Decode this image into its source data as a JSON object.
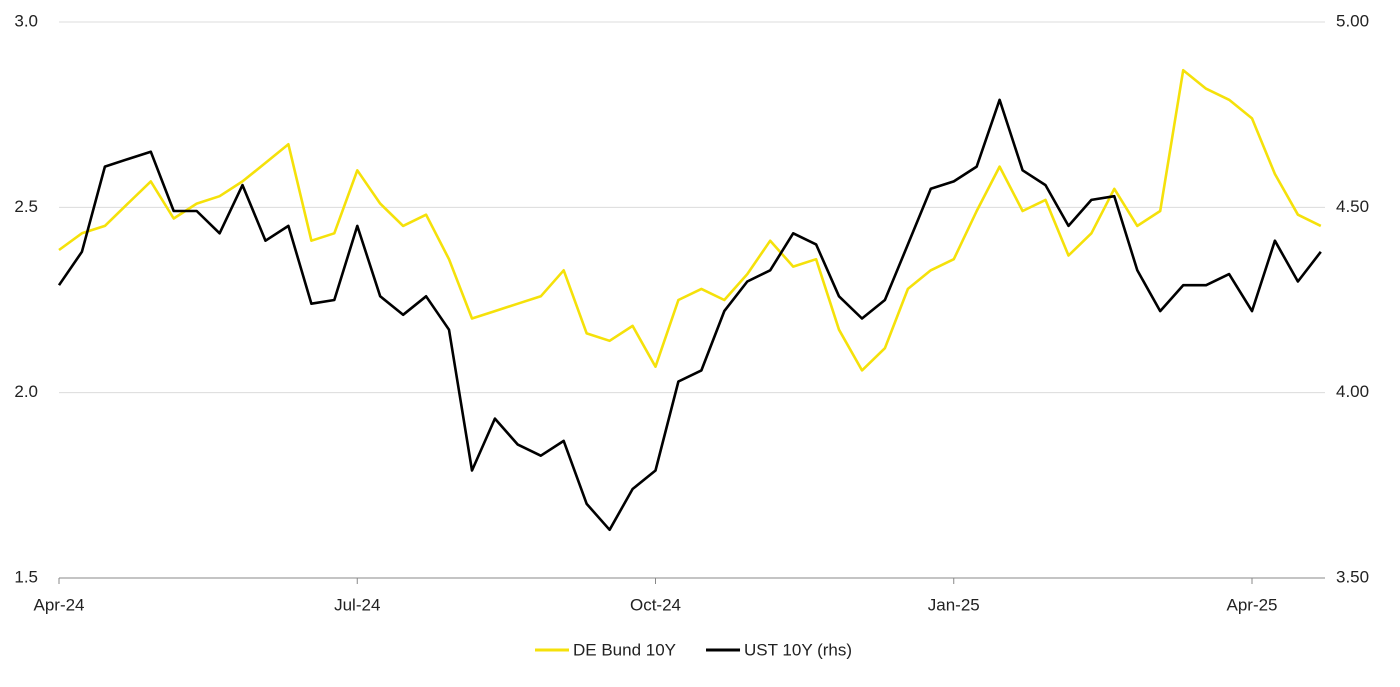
{
  "chart_data": {
    "type": "line",
    "categories": [
      "Apr-24",
      null,
      null,
      null,
      null,
      null,
      null,
      null,
      null,
      null,
      null,
      null,
      null,
      "Jul-24",
      null,
      null,
      null,
      null,
      null,
      null,
      null,
      null,
      null,
      null,
      null,
      null,
      "Oct-24",
      null,
      null,
      null,
      null,
      null,
      null,
      null,
      null,
      null,
      null,
      null,
      null,
      "Jan-25",
      null,
      null,
      null,
      null,
      null,
      null,
      null,
      null,
      null,
      null,
      null,
      null,
      "Apr-25",
      null,
      null,
      null
    ],
    "series": [
      {
        "name": "DE Bund 10Y",
        "color": "#f5e10a",
        "values": [
          2.385,
          2.43,
          2.45,
          2.51,
          2.57,
          2.47,
          2.51,
          2.53,
          2.57,
          2.62,
          2.67,
          2.41,
          2.43,
          2.6,
          2.51,
          2.45,
          2.48,
          2.36,
          2.2,
          2.22,
          2.24,
          2.26,
          2.33,
          2.16,
          2.14,
          2.18,
          2.07,
          2.25,
          2.28,
          2.25,
          2.32,
          2.41,
          2.34,
          2.36,
          2.17,
          2.06,
          2.12,
          2.28,
          2.33,
          2.36,
          2.49,
          2.61,
          2.49,
          2.52,
          2.37,
          2.43,
          2.55,
          2.45,
          2.49,
          2.87,
          2.82,
          2.79,
          2.74,
          2.59,
          2.48,
          2.45
        ]
      },
      {
        "name": "UST 10Y (rhs)",
        "color": "#000000",
        "axis": "y2",
        "values": [
          4.29,
          4.38,
          4.61,
          4.63,
          4.65,
          4.49,
          4.49,
          4.43,
          4.56,
          4.41,
          4.45,
          4.24,
          4.25,
          4.45,
          4.26,
          4.21,
          4.26,
          4.17,
          3.79,
          3.93,
          3.86,
          3.83,
          3.87,
          3.7,
          3.63,
          3.74,
          3.79,
          4.03,
          4.06,
          4.22,
          4.3,
          4.33,
          4.43,
          4.4,
          4.26,
          4.2,
          4.25,
          4.4,
          4.55,
          4.57,
          4.61,
          4.79,
          4.6,
          4.56,
          4.45,
          4.52,
          4.53,
          4.33,
          4.22,
          4.29,
          4.29,
          4.32,
          4.22,
          4.41,
          4.3,
          4.38
        ]
      }
    ],
    "ylim": [
      1.5,
      3.0
    ],
    "yticks": [
      1.5,
      {
        "value": 2,
        "label": "2.0"
      },
      2.5,
      {
        "value": 3,
        "label": "3.0"
      }
    ],
    "y2lim": [
      3.5,
      5.0
    ],
    "y2ticks": [
      {
        "value": 3.5,
        "label": "3.50"
      },
      {
        "value": 4,
        "label": "4.00"
      },
      {
        "value": 4.5,
        "label": "4.50"
      },
      {
        "value": 5,
        "label": "5.00"
      }
    ],
    "grid": true,
    "legend": "bottom"
  }
}
